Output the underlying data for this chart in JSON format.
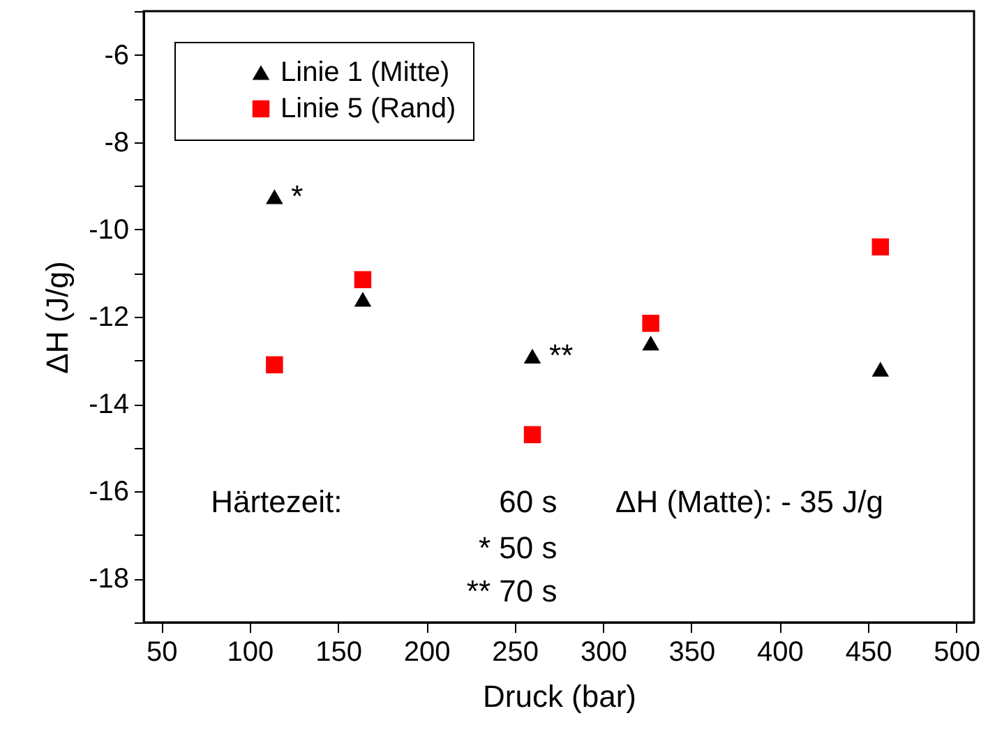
{
  "chart_data": {
    "type": "scatter",
    "xlabel": "Druck (bar)",
    "ylabel": "ΔH (J/g)",
    "xlim": [
      40,
      510
    ],
    "xticks": [
      50,
      100,
      150,
      200,
      250,
      300,
      350,
      400,
      450,
      500
    ],
    "ylim": [
      -19,
      -5
    ],
    "yticks": [
      {
        "value": -19,
        "label": null
      },
      -18,
      {
        "value": -17,
        "label": null
      },
      -16,
      {
        "value": -15,
        "label": null
      },
      -14,
      {
        "value": -13,
        "label": null
      },
      -12,
      {
        "value": -11,
        "label": null
      },
      -10,
      {
        "value": -9,
        "label": null
      },
      -8,
      {
        "value": -7,
        "label": null
      },
      -6,
      {
        "value": -5,
        "label": null
      }
    ],
    "x": [
      114,
      164,
      260,
      327,
      457
    ],
    "series": [
      {
        "name": "Linie 1 (Mitte)",
        "color": "#000000",
        "marker": "triangle",
        "values": [
          -9.25,
          -11.6,
          -12.9,
          -12.6,
          -13.2
        ]
      },
      {
        "name": "Linie 5 (Rand)",
        "color": "#ff0000",
        "marker": "square",
        "values": [
          -13.1,
          -11.15,
          -14.7,
          -12.15,
          -10.4
        ]
      }
    ],
    "legend": "top left",
    "grid": false,
    "annotations": [
      {
        "text": "*",
        "x": 114,
        "y": -9.25
      },
      {
        "text": "**",
        "x": 260,
        "y": -12.9
      },
      "Härtezeit:",
      "60 s",
      "*  50 s",
      "**  70 s",
      "ΔH (Matte):  - 35 J/g"
    ]
  }
}
